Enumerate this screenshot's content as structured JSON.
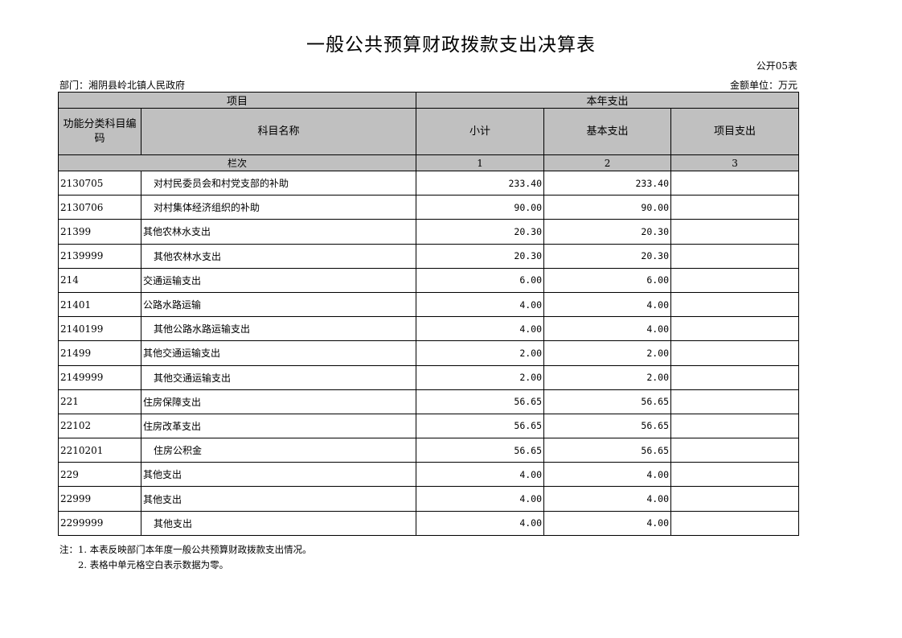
{
  "title": "一般公共预算财政拨款支出决算表",
  "table_no": "公开05表",
  "department": "部门：湘阴县岭北镇人民政府",
  "unit": "金额单位：万元",
  "headers": {
    "item": "项目",
    "current_year": "本年支出",
    "code": "功能分类科目编码",
    "name": "科目名称",
    "subtotal": "小计",
    "basic": "基本支出",
    "project": "项目支出",
    "column_no": "栏次",
    "col1": "1",
    "col2": "2",
    "col3": "3"
  },
  "rows": [
    {
      "code": "2130705",
      "name": "对村民委员会和村党支部的补助",
      "indent": true,
      "subtotal": "233.40",
      "basic": "233.40",
      "project": ""
    },
    {
      "code": "2130706",
      "name": "对村集体经济组织的补助",
      "indent": true,
      "subtotal": "90.00",
      "basic": "90.00",
      "project": ""
    },
    {
      "code": "21399",
      "name": "其他农林水支出",
      "indent": false,
      "subtotal": "20.30",
      "basic": "20.30",
      "project": ""
    },
    {
      "code": "2139999",
      "name": "其他农林水支出",
      "indent": true,
      "subtotal": "20.30",
      "basic": "20.30",
      "project": ""
    },
    {
      "code": "214",
      "name": "交通运输支出",
      "indent": false,
      "subtotal": "6.00",
      "basic": "6.00",
      "project": ""
    },
    {
      "code": "21401",
      "name": "公路水路运输",
      "indent": false,
      "subtotal": "4.00",
      "basic": "4.00",
      "project": ""
    },
    {
      "code": "2140199",
      "name": "其他公路水路运输支出",
      "indent": true,
      "subtotal": "4.00",
      "basic": "4.00",
      "project": ""
    },
    {
      "code": "21499",
      "name": "其他交通运输支出",
      "indent": false,
      "subtotal": "2.00",
      "basic": "2.00",
      "project": ""
    },
    {
      "code": "2149999",
      "name": "其他交通运输支出",
      "indent": true,
      "subtotal": "2.00",
      "basic": "2.00",
      "project": ""
    },
    {
      "code": "221",
      "name": "住房保障支出",
      "indent": false,
      "subtotal": "56.65",
      "basic": "56.65",
      "project": ""
    },
    {
      "code": "22102",
      "name": "住房改革支出",
      "indent": false,
      "subtotal": "56.65",
      "basic": "56.65",
      "project": ""
    },
    {
      "code": "2210201",
      "name": "住房公积金",
      "indent": true,
      "subtotal": "56.65",
      "basic": "56.65",
      "project": ""
    },
    {
      "code": "229",
      "name": "其他支出",
      "indent": false,
      "subtotal": "4.00",
      "basic": "4.00",
      "project": ""
    },
    {
      "code": "22999",
      "name": "其他支出",
      "indent": false,
      "subtotal": "4.00",
      "basic": "4.00",
      "project": ""
    },
    {
      "code": "2299999",
      "name": "其他支出",
      "indent": true,
      "subtotal": "4.00",
      "basic": "4.00",
      "project": ""
    }
  ],
  "notes": [
    "注：1. 本表反映部门本年度一般公共预算财政拨款支出情况。",
    "2. 表格中单元格空白表示数据为零。"
  ]
}
